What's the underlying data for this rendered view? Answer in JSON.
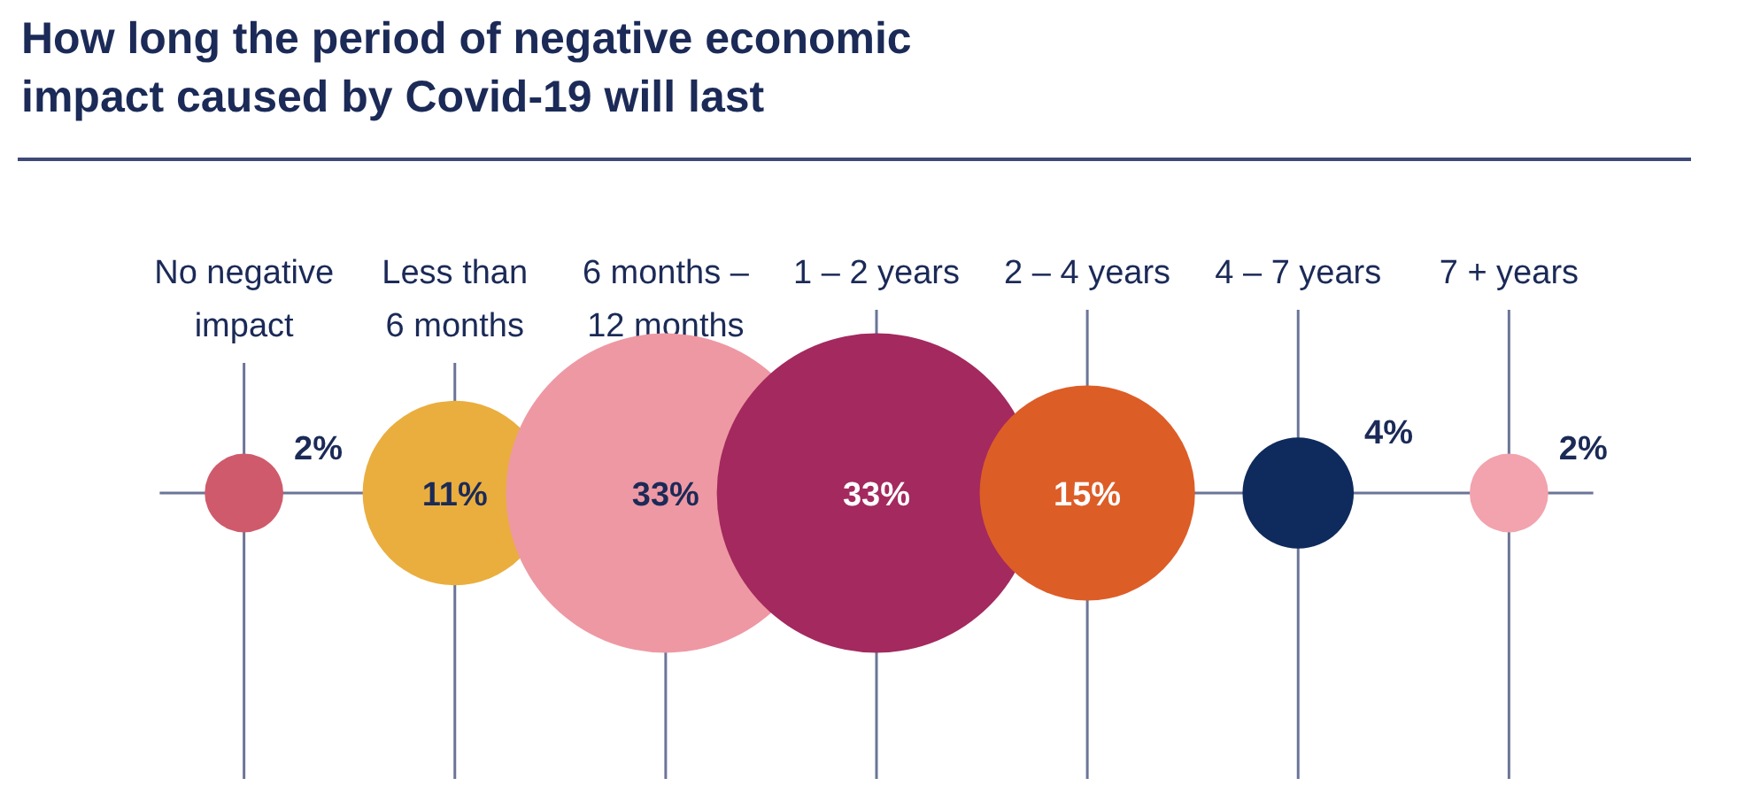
{
  "chart_data": {
    "type": "other",
    "title": "How long the period of negative economic impact caused by Covid-19 will last",
    "categories": [
      "No negative impact",
      "Less than 6 months",
      "6 months – 12 months",
      "1 – 2 years",
      "2 – 4 years",
      "4 – 7 years",
      "7 + years"
    ],
    "values": [
      2,
      11,
      33,
      33,
      15,
      4,
      2
    ],
    "value_labels": [
      "2%",
      "11%",
      "33%",
      "33%",
      "15%",
      "4%",
      "2%"
    ],
    "colors": [
      "#cf5a6b",
      "#eaae3e",
      "#ee98a3",
      "#a3295e",
      "#dd5d27",
      "#0f2a5c",
      "#f2a3ae"
    ]
  }
}
